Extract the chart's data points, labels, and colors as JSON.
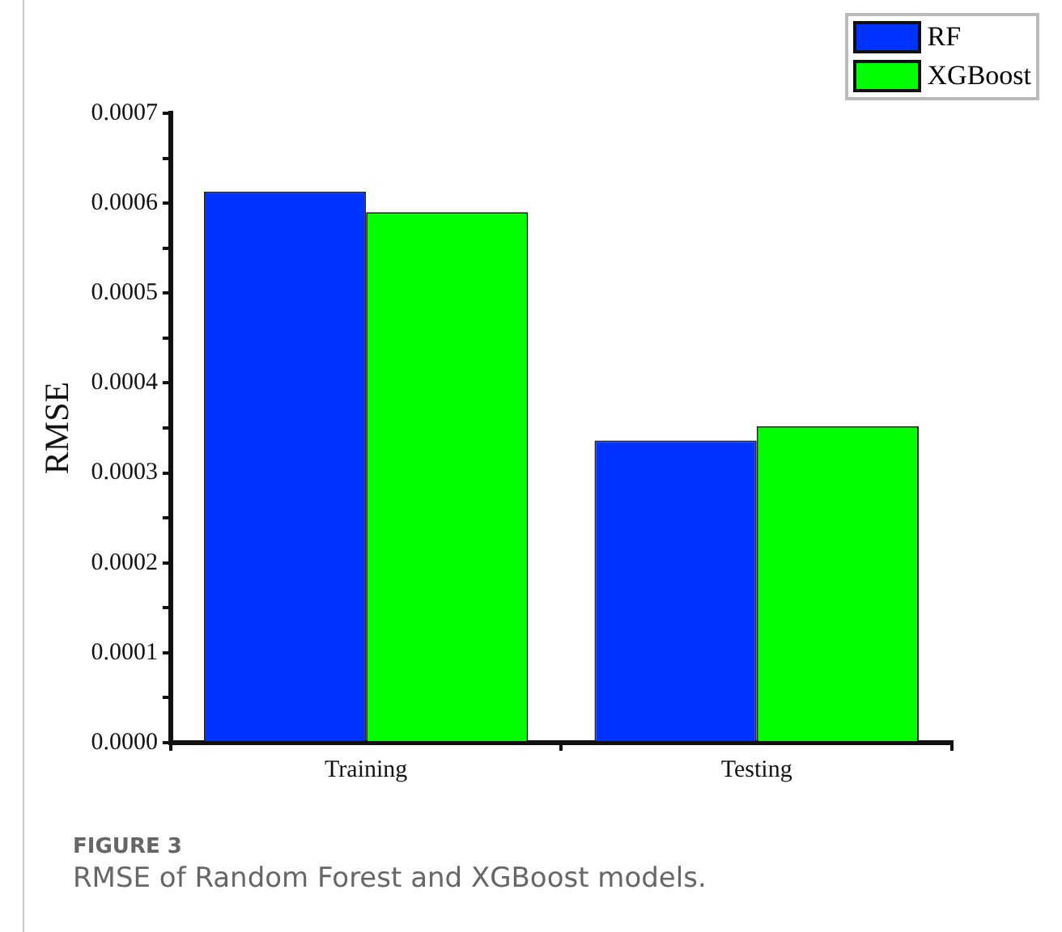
{
  "chart_data": {
    "type": "bar",
    "title": "RMSE of Random Forest and XGBoost models.",
    "annotations": [
      "FIGURE 3"
    ],
    "ylabel": "RMSE",
    "categories": [
      "Training",
      "Testing"
    ],
    "series": [
      {
        "name": "RF",
        "color": "#0033ff",
        "values": [
          0.000613,
          0.000336
        ]
      },
      {
        "name": "XGBoost",
        "color": "#00ff00",
        "values": [
          0.00059,
          0.000352
        ]
      }
    ],
    "ylim": [
      0,
      0.0007
    ],
    "yticks": [
      "0.0000",
      {
        "value": 5e-05,
        "label": null
      },
      {
        "value": 0.0001,
        "label": "0.0001"
      },
      {
        "value": 0.00015,
        "label": null
      },
      {
        "value": 0.0002,
        "label": "0.0002"
      },
      {
        "value": 0.00025,
        "label": null
      },
      {
        "value": 0.0003,
        "label": "0.0003"
      },
      {
        "value": 0.00035,
        "label": null
      },
      {
        "value": 0.0004,
        "label": "0.0004"
      },
      {
        "value": 0.00045,
        "label": null
      },
      {
        "value": 0.0005,
        "label": "0.0005"
      },
      {
        "value": 0.00055,
        "label": null
      },
      {
        "value": 0.0006,
        "label": "0.0006"
      },
      {
        "value": 0.00065,
        "label": null
      },
      {
        "value": 0.0007,
        "label": "0.0007"
      }
    ],
    "grid": false,
    "legend": "top right"
  }
}
